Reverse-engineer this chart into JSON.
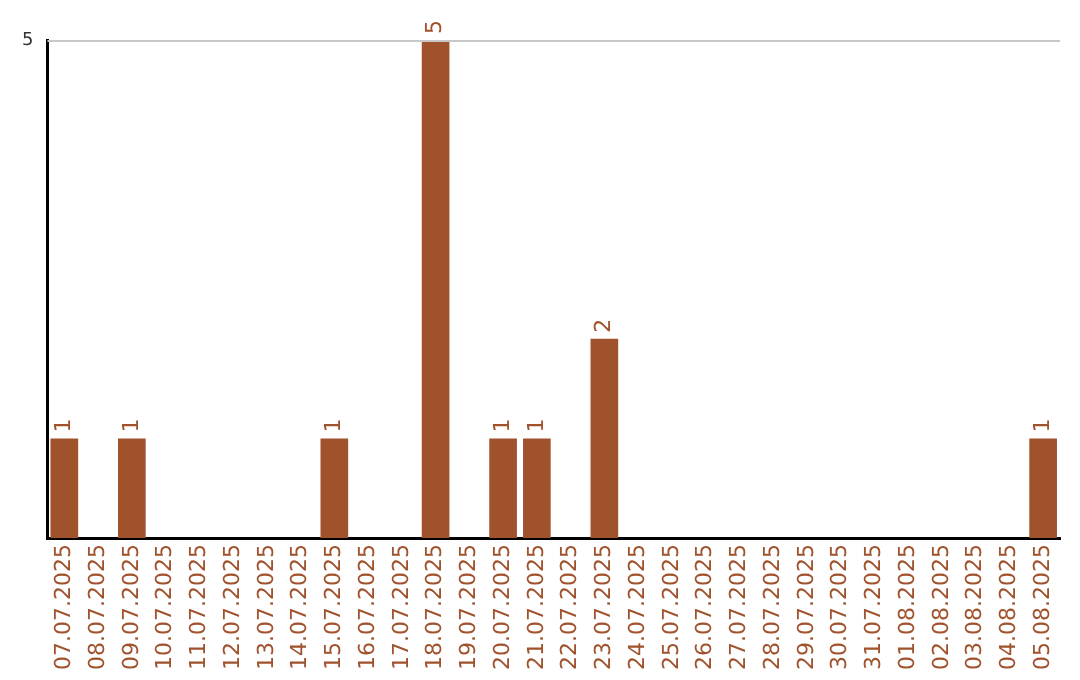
{
  "chart_data": {
    "type": "bar",
    "categories": [
      "07.07.2025",
      "08.07.2025",
      "09.07.2025",
      "10.07.2025",
      "11.07.2025",
      "12.07.2025",
      "13.07.2025",
      "14.07.2025",
      "15.07.2025",
      "16.07.2025",
      "17.07.2025",
      "18.07.2025",
      "19.07.2025",
      "20.07.2025",
      "21.07.2025",
      "22.07.2025",
      "23.07.2025",
      "24.07.2025",
      "25.07.2025",
      "26.07.2025",
      "27.07.2025",
      "28.07.2025",
      "29.07.2025",
      "30.07.2025",
      "31.07.2025",
      "01.08.2025",
      "02.08.2025",
      "03.08.2025",
      "04.08.2025",
      "05.08.2025"
    ],
    "values": [
      1,
      0,
      1,
      0,
      0,
      0,
      0,
      0,
      1,
      0,
      0,
      5,
      0,
      1,
      1,
      0,
      2,
      0,
      0,
      0,
      0,
      0,
      0,
      0,
      0,
      0,
      0,
      0,
      0,
      1
    ],
    "value_labels": [
      "1",
      null,
      "1",
      null,
      null,
      null,
      null,
      null,
      "1",
      null,
      null,
      "5",
      null,
      "1",
      "1",
      null,
      "2",
      null,
      null,
      null,
      null,
      null,
      null,
      null,
      null,
      null,
      null,
      null,
      null,
      "1"
    ],
    "color": "#a0522d",
    "ylim": [
      0,
      5
    ],
    "yticks": [
      5
    ],
    "legend": false
  }
}
